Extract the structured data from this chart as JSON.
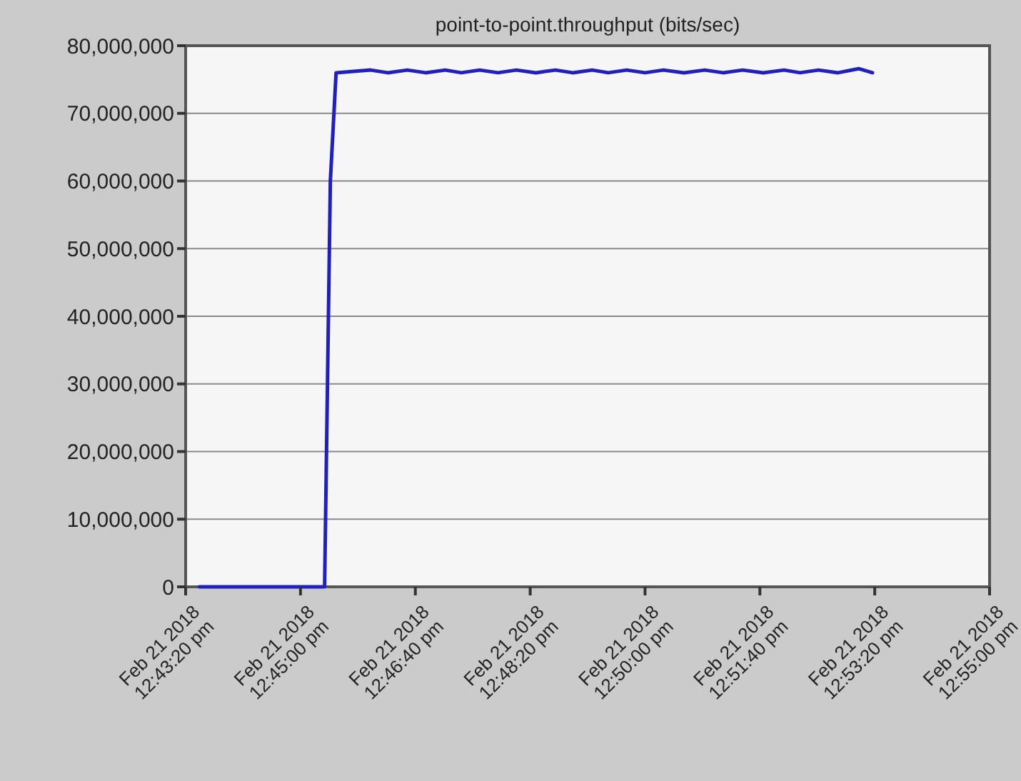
{
  "chart_data": {
    "type": "line",
    "title": "point-to-point.throughput (bits/sec)",
    "x": [
      "2018-02-21T12:43:32",
      "2018-02-21T12:45:21",
      "2018-02-21T12:45:26",
      "2018-02-21T12:45:31",
      "2018-02-21T12:46:01",
      "2018-02-21T12:46:16",
      "2018-02-21T12:46:33",
      "2018-02-21T12:46:49",
      "2018-02-21T12:47:06",
      "2018-02-21T12:47:20",
      "2018-02-21T12:47:36",
      "2018-02-21T12:47:52",
      "2018-02-21T12:48:08",
      "2018-02-21T12:48:25",
      "2018-02-21T12:48:42",
      "2018-02-21T12:48:57",
      "2018-02-21T12:49:14",
      "2018-02-21T12:49:28",
      "2018-02-21T12:49:44",
      "2018-02-21T12:50:00",
      "2018-02-21T12:50:16",
      "2018-02-21T12:50:34",
      "2018-02-21T12:50:52",
      "2018-02-21T12:51:08",
      "2018-02-21T12:51:25",
      "2018-02-21T12:51:43",
      "2018-02-21T12:52:01",
      "2018-02-21T12:52:15",
      "2018-02-21T12:52:31",
      "2018-02-21T12:52:48",
      "2018-02-21T12:53:06",
      "2018-02-21T12:53:18"
    ],
    "series": [
      {
        "color": "#2020c0",
        "values": [
          0,
          0,
          60000000,
          76000000,
          76400000,
          76000000,
          76400000,
          76000000,
          76400000,
          76000000,
          76400000,
          76000000,
          76400000,
          76000000,
          76400000,
          76000000,
          76400000,
          76000000,
          76400000,
          76000000,
          76400000,
          76000000,
          76400000,
          76000000,
          76400000,
          76000000,
          76400000,
          76000000,
          76400000,
          76000000,
          76600000,
          76000000
        ]
      }
    ],
    "xlim": [
      "2018-02-21T12:43:20",
      "2018-02-21T12:55:00"
    ],
    "xticks": [
      {
        "value": "2018-02-21T12:43:20",
        "label": "Feb 21 2018\n12:43:20 pm"
      },
      {
        "value": "2018-02-21T12:45:00",
        "label": "Feb 21 2018\n12:45:00 pm"
      },
      {
        "value": "2018-02-21T12:46:40",
        "label": "Feb 21 2018\n12:46:40 pm"
      },
      {
        "value": "2018-02-21T12:48:20",
        "label": "Feb 21 2018\n12:48:20 pm"
      },
      {
        "value": "2018-02-21T12:50:00",
        "label": "Feb 21 2018\n12:50:00 pm"
      },
      {
        "value": "2018-02-21T12:51:40",
        "label": "Feb 21 2018\n12:51:40 pm"
      },
      {
        "value": "2018-02-21T12:53:20",
        "label": "Feb 21 2018\n12:53:20 pm"
      },
      {
        "value": "2018-02-21T12:55:00",
        "label": "Feb 21 2018\n12:55:00 pm"
      }
    ],
    "ylim": [
      0,
      80000000
    ],
    "yticks": [
      {
        "value": 0,
        "label": "0"
      },
      {
        "value": 10000000,
        "label": "10,000,000"
      },
      {
        "value": 20000000,
        "label": "20,000,000"
      },
      {
        "value": 30000000,
        "label": "30,000,000"
      },
      {
        "value": 40000000,
        "label": "40,000,000"
      },
      {
        "value": 50000000,
        "label": "50,000,000"
      },
      {
        "value": 60000000,
        "label": "60,000,000"
      },
      {
        "value": 70000000,
        "label": "70,000,000"
      },
      {
        "value": 80000000,
        "label": "80,000,000"
      }
    ],
    "grid": "y",
    "marker": "none",
    "line_style": "solid"
  }
}
